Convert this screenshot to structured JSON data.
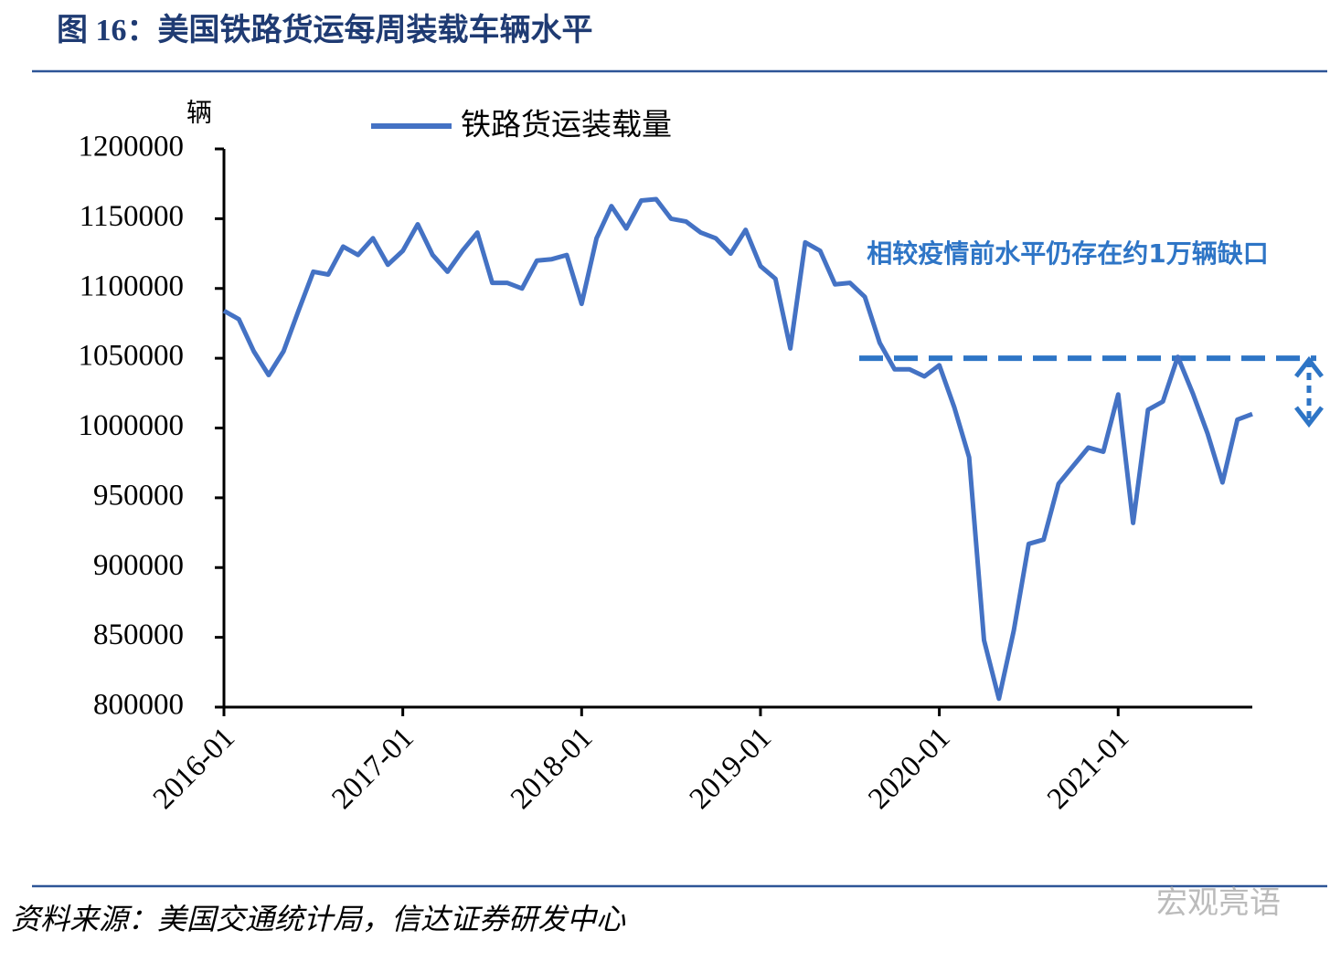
{
  "chart_data": {
    "type": "line",
    "title": "图 16：美国铁路货运每周装载车辆水平",
    "y_label": "辆",
    "x": [
      "2016-01",
      "2016-02",
      "2016-03",
      "2016-04",
      "2016-05",
      "2016-06",
      "2016-07",
      "2016-08",
      "2016-09",
      "2016-10",
      "2016-11",
      "2016-12",
      "2017-01",
      "2017-02",
      "2017-03",
      "2017-04",
      "2017-05",
      "2017-06",
      "2017-07",
      "2017-08",
      "2017-09",
      "2017-10",
      "2017-11",
      "2017-12",
      "2018-01",
      "2018-02",
      "2018-03",
      "2018-04",
      "2018-05",
      "2018-06",
      "2018-07",
      "2018-08",
      "2018-09",
      "2018-10",
      "2018-11",
      "2018-12",
      "2019-01",
      "2019-02",
      "2019-03",
      "2019-04",
      "2019-05",
      "2019-06",
      "2019-07",
      "2019-08",
      "2019-09",
      "2019-10",
      "2019-11",
      "2019-12",
      "2020-01",
      "2020-02",
      "2020-03",
      "2020-04",
      "2020-05",
      "2020-06",
      "2020-07",
      "2020-08",
      "2020-09",
      "2020-10",
      "2020-11",
      "2020-12",
      "2021-01",
      "2021-02",
      "2021-03",
      "2021-04",
      "2021-05",
      "2021-06",
      "2021-07",
      "2021-08",
      "2021-09",
      "2021-10"
    ],
    "series": [
      {
        "name": "铁路货运装载量",
        "color": "#4472c4",
        "values": [
          1084000,
          1078000,
          1055000,
          1038000,
          1055000,
          1084000,
          1112000,
          1110000,
          1130000,
          1124000,
          1136000,
          1117000,
          1127000,
          1146000,
          1124000,
          1112000,
          1127000,
          1140000,
          1104000,
          1104000,
          1100000,
          1120000,
          1121000,
          1124000,
          1089000,
          1136000,
          1159000,
          1143000,
          1163000,
          1164000,
          1150000,
          1148000,
          1140000,
          1136000,
          1125000,
          1142000,
          1116000,
          1107000,
          1057000,
          1133000,
          1127000,
          1103000,
          1104000,
          1094000,
          1061000,
          1042000,
          1042000,
          1037000,
          1045000,
          1015000,
          979000,
          848000,
          806000,
          855000,
          917000,
          920000,
          960000,
          973000,
          986000,
          983000,
          1024000,
          932000,
          1013000,
          1019000,
          1051000,
          1025000,
          996000,
          961000,
          1006000,
          1010000
        ]
      }
    ],
    "xlim": [
      "2016-01",
      "2021-10"
    ],
    "xticks": [
      "2016-01",
      "2017-01",
      "2018-01",
      "2019-01",
      "2020-01",
      "2021-01"
    ],
    "ylim": [
      800000,
      1200000
    ],
    "yticks": [
      800000,
      850000,
      900000,
      950000,
      1000000,
      1050000,
      1100000,
      1150000,
      1200000
    ],
    "reference_line": {
      "value": 1050000,
      "color": "#2e75c6"
    },
    "annotation": "相较疫情前水平仍存在约1万辆缺口",
    "source": "资料来源：美国交通统计局，信达证券研发中心",
    "watermark": "宏观亮语"
  }
}
